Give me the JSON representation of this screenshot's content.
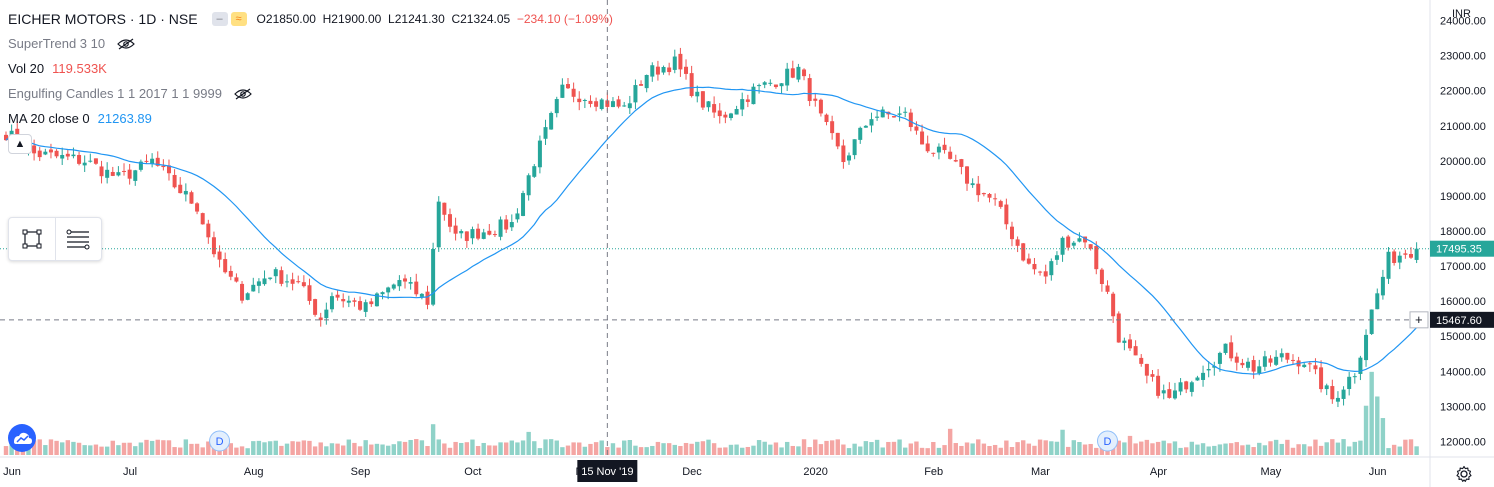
{
  "header": {
    "symbol_title": "EICHER MOTORS · 1D · NSE",
    "open_label": "O",
    "open": "21850.00",
    "high_label": "H",
    "high": "21900.00",
    "low_label": "L",
    "low": "21241.30",
    "close_label": "C",
    "close": "21324.05",
    "change": "−234.10 (−1.09%)"
  },
  "indicators": [
    {
      "name": "SuperTrend 3 10",
      "value": "",
      "hidden": true
    },
    {
      "name": "Vol 20",
      "value": "119.533K",
      "value_color": "#ef5350",
      "hidden": false
    },
    {
      "name": "Engulfing Candles 1 1 2017 1 1 9999",
      "value": "",
      "hidden": true
    },
    {
      "name": "MA 20 close 0",
      "value": "21263.89",
      "value_color": "#2196f3",
      "hidden": false
    }
  ],
  "icons": {
    "collapse": "chevron-up-icon",
    "drawing_tools": [
      "rectangle-tool-icon",
      "lines-tool-icon"
    ],
    "logo": "tradingview-logo-icon",
    "settings": "gear-icon"
  },
  "colors": {
    "up": "#26a69a",
    "down": "#ef5350",
    "vol_up": "#8fd2c8",
    "vol_down": "#f4a5a3",
    "ma": "#2196f3",
    "price_line": "#26a69a",
    "crosshair": "#787b86"
  },
  "chart_data": {
    "type": "candlestick",
    "currency_label": "INR",
    "y_ticks": [
      "24000.00",
      "23000.00",
      "22000.00",
      "21000.00",
      "20000.00",
      "19000.00",
      "18000.00",
      "17000.00",
      "16000.00",
      "15000.00",
      "14000.00",
      "13000.00",
      "12000.00"
    ],
    "ylim": [
      11700,
      24300
    ],
    "x_labels": [
      "Jun",
      "Jul",
      "Aug",
      "Sep",
      "Oct",
      "Nov",
      "Dec",
      "2020",
      "Feb",
      "Mar",
      "Apr",
      "May",
      "Jun"
    ],
    "x_label_bar_index": [
      0,
      21,
      43,
      62,
      82,
      102,
      121,
      143,
      164,
      183,
      204,
      224,
      243
    ],
    "bar_count": 252,
    "last_price_label": "17495.35",
    "last_price": 17495.35,
    "crosshair_price_label": "15467.60",
    "crosshair_price": 15467.6,
    "crosshair_date_label": "15 Nov '19",
    "crosshair_bar_index": 107,
    "event_markers": [
      {
        "label": "D",
        "bar_index": 38
      },
      {
        "label": "D",
        "bar_index": 196
      }
    ],
    "anchors": [
      [
        0,
        20800
      ],
      [
        5,
        20200
      ],
      [
        14,
        20000
      ],
      [
        20,
        19500
      ],
      [
        24,
        19800
      ],
      [
        26,
        20000
      ],
      [
        30,
        19300
      ],
      [
        34,
        18700
      ],
      [
        38,
        17000
      ],
      [
        42,
        16200
      ],
      [
        47,
        16800
      ],
      [
        52,
        16500
      ],
      [
        56,
        15500
      ],
      [
        58,
        16200
      ],
      [
        64,
        15800
      ],
      [
        70,
        16600
      ],
      [
        75,
        16000
      ],
      [
        77,
        18900
      ],
      [
        80,
        17800
      ],
      [
        90,
        18200
      ],
      [
        94,
        20000
      ],
      [
        99,
        22000
      ],
      [
        104,
        21800
      ],
      [
        110,
        21500
      ],
      [
        114,
        22500
      ],
      [
        119,
        22800
      ],
      [
        123,
        21800
      ],
      [
        127,
        21200
      ],
      [
        133,
        22000
      ],
      [
        141,
        22600
      ],
      [
        145,
        21200
      ],
      [
        149,
        20000
      ],
      [
        154,
        21300
      ],
      [
        160,
        21300
      ],
      [
        163,
        20500
      ],
      [
        168,
        20000
      ],
      [
        172,
        19300
      ],
      [
        176,
        18800
      ],
      [
        182,
        17000
      ],
      [
        185,
        16700
      ],
      [
        188,
        17700
      ],
      [
        192,
        17800
      ],
      [
        196,
        16200
      ],
      [
        198,
        15000
      ],
      [
        203,
        13800
      ],
      [
        207,
        13200
      ],
      [
        212,
        14000
      ],
      [
        217,
        14600
      ],
      [
        222,
        14100
      ],
      [
        227,
        14400
      ],
      [
        231,
        14300
      ],
      [
        236,
        13200
      ],
      [
        240,
        14000
      ],
      [
        243,
        15700
      ],
      [
        246,
        17200
      ],
      [
        249,
        17400
      ],
      [
        251,
        17495
      ]
    ],
    "volume_max_label": "",
    "volume_spikes": [
      [
        76,
        1.0
      ],
      [
        93,
        0.75
      ],
      [
        168,
        0.85
      ],
      [
        188,
        0.82
      ],
      [
        200,
        0.62
      ],
      [
        242,
        1.6
      ],
      [
        243,
        2.7
      ],
      [
        244,
        1.9
      ],
      [
        245,
        1.2
      ]
    ]
  }
}
